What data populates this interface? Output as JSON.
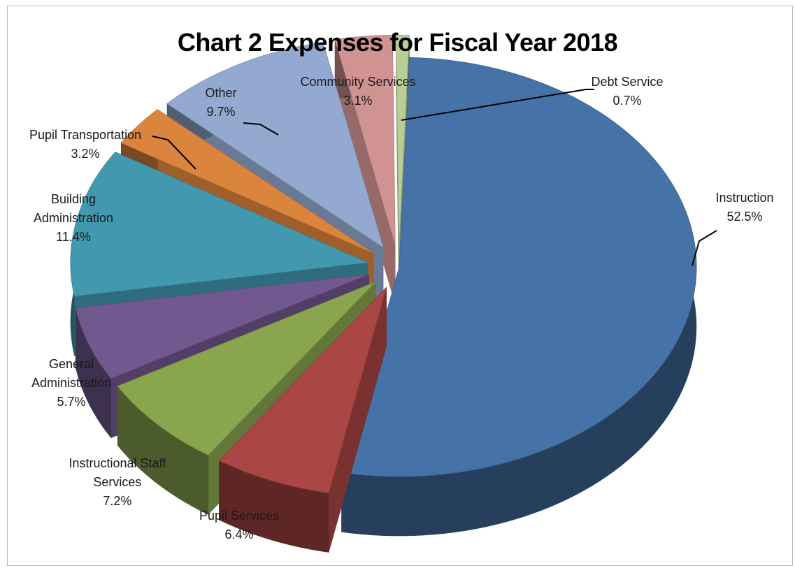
{
  "chart_data": {
    "type": "pie",
    "title": "Chart 2 Expenses for Fiscal Year 2018",
    "style": "3d-exploded",
    "slices": [
      {
        "name": "Instruction",
        "label_lines": [
          "Instruction"
        ],
        "value": 52.5,
        "value_label": "52.5%",
        "color": "#4572a7"
      },
      {
        "name": "Pupil Services",
        "label_lines": [
          "Pupil Services"
        ],
        "value": 6.4,
        "value_label": "6.4%",
        "color": "#aa4643"
      },
      {
        "name": "Instructional Staff Services",
        "label_lines": [
          "Instructional Staff",
          "Services"
        ],
        "value": 7.2,
        "value_label": "7.2%",
        "color": "#89a54e"
      },
      {
        "name": "General Administration",
        "label_lines": [
          "General",
          "Administration"
        ],
        "value": 5.7,
        "value_label": "5.7%",
        "color": "#71588f"
      },
      {
        "name": "Building Administration",
        "label_lines": [
          "Building",
          "Administration"
        ],
        "value": 11.4,
        "value_label": "11.4%",
        "color": "#4198af"
      },
      {
        "name": "Pupil Transportation",
        "label_lines": [
          "Pupil Transportation"
        ],
        "value": 3.2,
        "value_label": "3.2%",
        "color": "#db843d"
      },
      {
        "name": "Other",
        "label_lines": [
          "Other"
        ],
        "value": 9.7,
        "value_label": "9.7%",
        "color": "#93a9cf"
      },
      {
        "name": "Community Services",
        "label_lines": [
          "Community Services"
        ],
        "value": 3.1,
        "value_label": "3.1%",
        "color": "#d19392"
      },
      {
        "name": "Debt Service",
        "label_lines": [
          "Debt Service"
        ],
        "value": 0.7,
        "value_label": "0.7%",
        "color": "#b9cd96"
      }
    ],
    "legend": "none"
  }
}
